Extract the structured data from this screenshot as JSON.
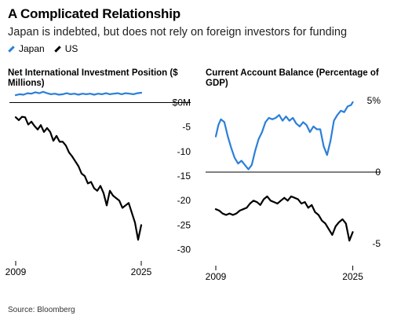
{
  "header": {
    "title": "A Complicated Relationship",
    "subtitle": "Japan is indebted, but does not rely on foreign investors for funding"
  },
  "legend": [
    {
      "label": "Japan",
      "color": "#2b7fd9"
    },
    {
      "label": "US",
      "color": "#000000"
    }
  ],
  "source": "Source: Bloomberg",
  "colors": {
    "japan": "#2b7fd9",
    "us": "#000000",
    "axis": "#000000"
  },
  "chart_data": [
    {
      "type": "line",
      "title": "Net International Investment Position ($ Millions)",
      "xlim": [
        2009,
        2025.5
      ],
      "ylim": [
        -32,
        2
      ],
      "x_ticks": [
        {
          "value": 2009,
          "label": "2009"
        },
        {
          "value": 2025,
          "label": "2025"
        }
      ],
      "y_ticks": [
        {
          "value": 0,
          "label": "$0M"
        },
        {
          "value": -5,
          "label": "-5"
        },
        {
          "value": -10,
          "label": "-10"
        },
        {
          "value": -15,
          "label": "-15"
        },
        {
          "value": -20,
          "label": "-20"
        },
        {
          "value": -25,
          "label": "-25"
        },
        {
          "value": -30,
          "label": "-30"
        }
      ],
      "series": [
        {
          "name": "Japan",
          "color": "#2b7fd9",
          "x": [
            2009,
            2009.5,
            2010,
            2010.5,
            2011,
            2011.5,
            2012,
            2012.5,
            2013,
            2013.5,
            2014,
            2014.5,
            2015,
            2015.5,
            2016,
            2016.5,
            2017,
            2017.5,
            2018,
            2018.5,
            2019,
            2019.5,
            2020,
            2020.5,
            2021,
            2021.5,
            2022,
            2022.5,
            2023,
            2023.5,
            2024,
            2024.5,
            2025
          ],
          "values": [
            1.5,
            1.7,
            1.6,
            1.9,
            1.8,
            2.1,
            1.9,
            2.2,
            1.9,
            1.7,
            1.8,
            1.6,
            1.7,
            1.9,
            1.7,
            1.8,
            1.6,
            1.8,
            1.7,
            1.8,
            1.6,
            1.8,
            1.7,
            1.9,
            1.7,
            1.8,
            1.9,
            1.7,
            1.9,
            1.8,
            1.7,
            1.9,
            2.0
          ]
        },
        {
          "name": "US",
          "color": "#000000",
          "x": [
            2009,
            2009.4,
            2009.8,
            2010.2,
            2010.6,
            2011,
            2011.4,
            2011.8,
            2012.2,
            2012.6,
            2013,
            2013.4,
            2013.8,
            2014.2,
            2014.6,
            2015,
            2015.4,
            2015.8,
            2016.2,
            2016.6,
            2017,
            2017.4,
            2017.8,
            2018.2,
            2018.6,
            2019,
            2019.4,
            2019.8,
            2020.2,
            2020.6,
            2021,
            2021.4,
            2021.8,
            2022.2,
            2022.6,
            2023,
            2023.4,
            2023.8,
            2024.2,
            2024.6,
            2025
          ],
          "values": [
            -3.0,
            -3.6,
            -2.9,
            -3.0,
            -4.5,
            -3.9,
            -4.8,
            -5.5,
            -4.6,
            -6.0,
            -5.2,
            -6.0,
            -7.8,
            -6.8,
            -8.0,
            -8.0,
            -8.8,
            -10.2,
            -11.0,
            -12.0,
            -13.0,
            -14.5,
            -15.0,
            -16.5,
            -16.2,
            -17.5,
            -18.0,
            -17.0,
            -18.5,
            -21.0,
            -18.0,
            -19.0,
            -19.5,
            -20.0,
            -21.5,
            -21.0,
            -20.5,
            -22.5,
            -24.5,
            -28.0,
            -25.0
          ]
        }
      ]
    },
    {
      "type": "line",
      "title": "Current Account Balance (Percentage of GDP)",
      "xlim": [
        2009,
        2025.5
      ],
      "ylim": [
        -6,
        6
      ],
      "x_ticks": [
        {
          "value": 2009,
          "label": "2009"
        },
        {
          "value": 2025,
          "label": "2025"
        }
      ],
      "y_ticks": [
        {
          "value": 5,
          "label": "5%"
        },
        {
          "value": 0,
          "label": "0"
        },
        {
          "value": -5,
          "label": "-5"
        }
      ],
      "series": [
        {
          "name": "Japan",
          "color": "#2b7fd9",
          "x": [
            2009,
            2009.3,
            2009.6,
            2010,
            2010.4,
            2010.8,
            2011.2,
            2011.6,
            2012,
            2012.4,
            2012.8,
            2013.2,
            2013.6,
            2014,
            2014.4,
            2014.8,
            2015.2,
            2015.6,
            2016,
            2016.4,
            2016.8,
            2017.2,
            2017.6,
            2018,
            2018.4,
            2018.8,
            2019.2,
            2019.6,
            2020,
            2020.4,
            2020.8,
            2021.2,
            2021.6,
            2022,
            2022.4,
            2022.8,
            2023.2,
            2023.6,
            2024,
            2024.4,
            2024.8,
            2025
          ],
          "values": [
            2.5,
            3.3,
            3.7,
            3.5,
            2.5,
            1.7,
            1.0,
            0.6,
            0.8,
            0.5,
            0.2,
            0.5,
            1.5,
            2.3,
            2.8,
            3.5,
            3.8,
            3.7,
            3.8,
            4.0,
            3.6,
            3.9,
            3.6,
            3.8,
            3.4,
            3.2,
            3.5,
            3.3,
            2.8,
            3.2,
            3.0,
            3.0,
            1.8,
            1.2,
            2.2,
            3.6,
            4.0,
            4.3,
            4.2,
            4.6,
            4.7,
            4.9
          ]
        },
        {
          "name": "US",
          "color": "#000000",
          "x": [
            2009,
            2009.4,
            2009.8,
            2010.2,
            2010.6,
            2011,
            2011.4,
            2011.8,
            2012.2,
            2012.6,
            2013,
            2013.4,
            2013.8,
            2014.2,
            2014.6,
            2015,
            2015.4,
            2015.8,
            2016.2,
            2016.6,
            2017,
            2017.4,
            2017.8,
            2018.2,
            2018.6,
            2019,
            2019.4,
            2019.8,
            2020.2,
            2020.6,
            2021,
            2021.4,
            2021.8,
            2022.2,
            2022.6,
            2023,
            2023.4,
            2023.8,
            2024.2,
            2024.6,
            2025
          ],
          "values": [
            -2.6,
            -2.7,
            -2.9,
            -3.0,
            -2.9,
            -3.0,
            -2.9,
            -2.7,
            -2.6,
            -2.5,
            -2.2,
            -2.0,
            -2.1,
            -2.3,
            -1.9,
            -1.7,
            -2.0,
            -2.1,
            -2.2,
            -2.0,
            -1.8,
            -2.0,
            -1.7,
            -1.8,
            -1.9,
            -2.2,
            -2.1,
            -2.5,
            -2.3,
            -2.8,
            -3.0,
            -3.4,
            -3.6,
            -4.0,
            -4.4,
            -3.8,
            -3.5,
            -3.3,
            -3.6,
            -4.8,
            -4.2
          ]
        }
      ]
    }
  ]
}
